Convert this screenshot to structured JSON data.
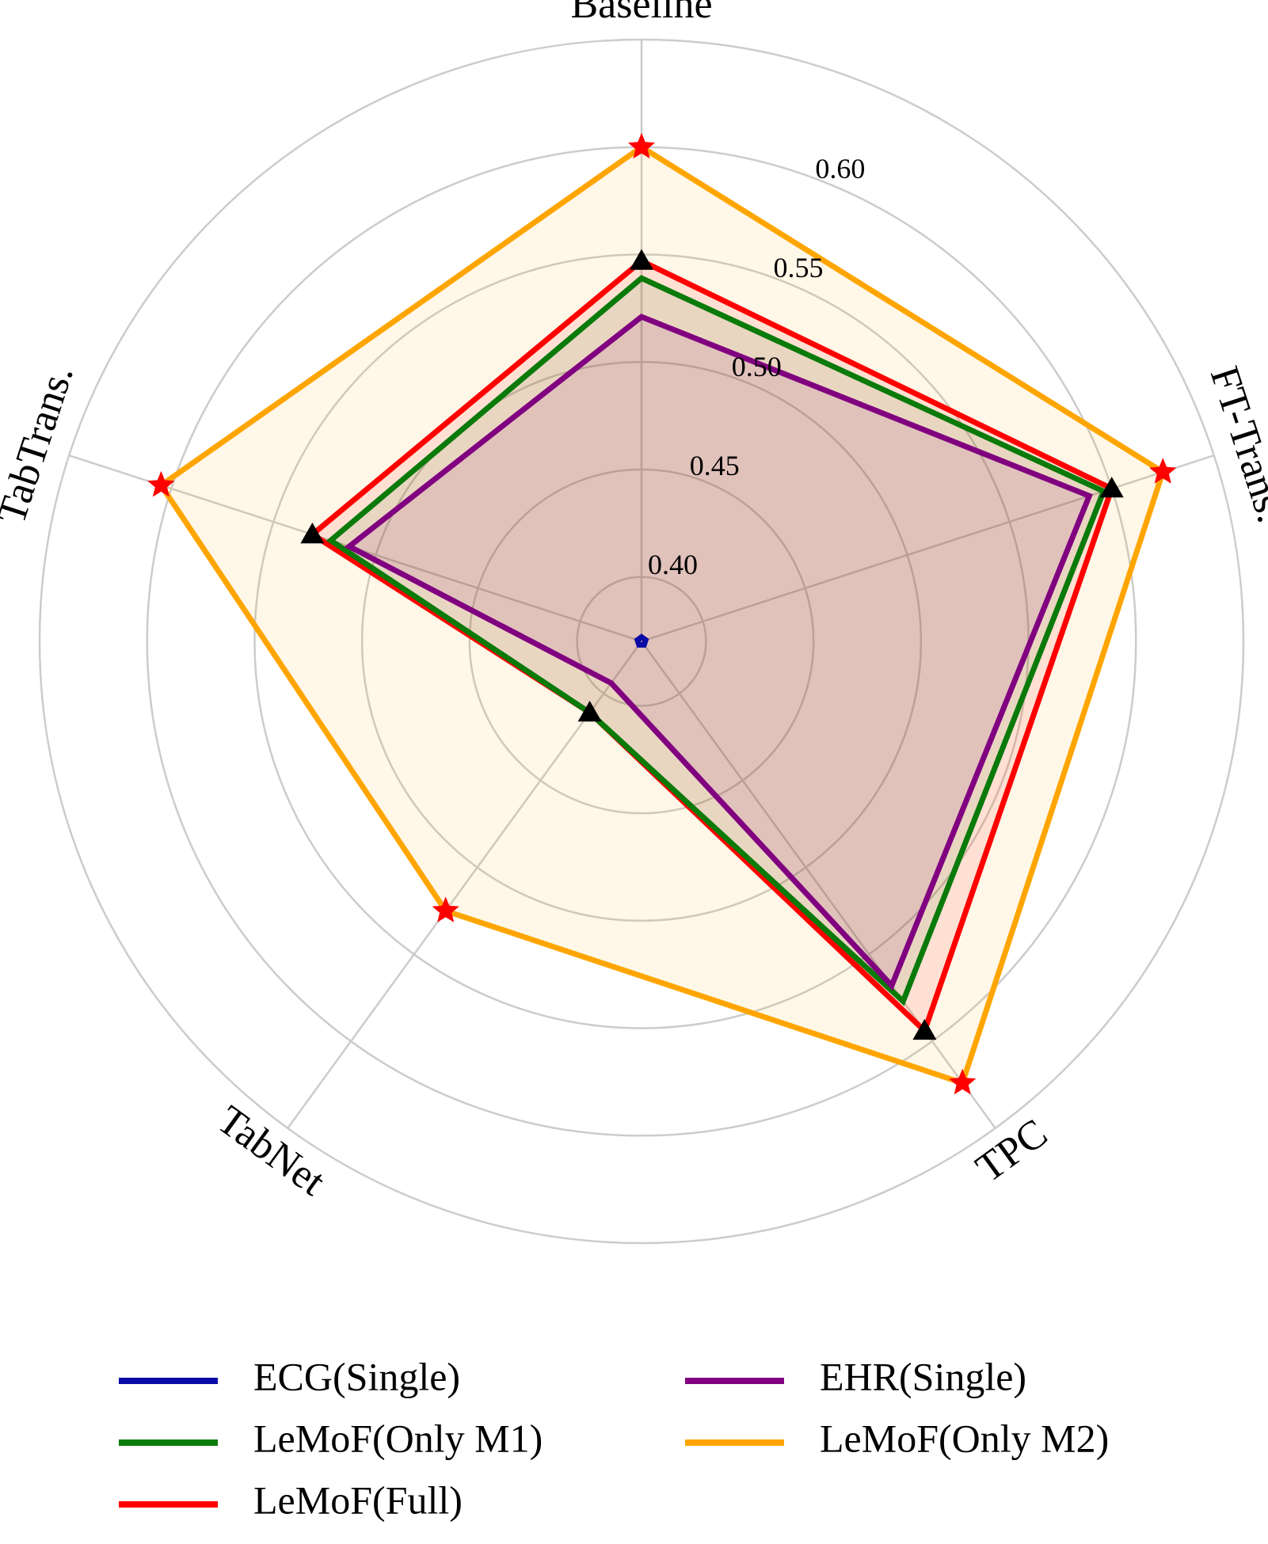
{
  "chart_data": {
    "type": "radar",
    "axes": [
      "Baseline",
      "FT-Trans.",
      "TPC",
      "TabNet",
      "TabTrans."
    ],
    "radial_ticks": [
      "0.40",
      "0.45",
      "0.50",
      "0.55",
      "0.60"
    ],
    "radial_tick_values": [
      0.4,
      0.45,
      0.5,
      0.55,
      0.6
    ],
    "rlim": [
      0.37,
      0.65
    ],
    "grid": true,
    "legend_position": "bottom",
    "series": [
      {
        "name": "ECG(Single)",
        "color": "#0a0aa6",
        "values": [
          0.372,
          0.372,
          0.372,
          0.372,
          0.372
        ],
        "fill": false,
        "marker": "none"
      },
      {
        "name": "EHR(Single)",
        "color": "#800080",
        "values": [
          0.521,
          0.589,
          0.568,
          0.394,
          0.513
        ],
        "fill": true,
        "marker": "none"
      },
      {
        "name": "LeMoF(Only M1)",
        "color": "#0a7a0a",
        "values": [
          0.539,
          0.596,
          0.577,
          0.411,
          0.522
        ],
        "fill": true,
        "marker": "none"
      },
      {
        "name": "LeMoF(Only M2)",
        "color": "#ffa500",
        "values": [
          0.6,
          0.625,
          0.624,
          0.525,
          0.605
        ],
        "fill": true,
        "marker": "star"
      },
      {
        "name": "LeMoF(Full)",
        "color": "#ff0000",
        "values": [
          0.547,
          0.6,
          0.594,
          0.411,
          0.531
        ],
        "fill": true,
        "marker": "triangle"
      }
    ],
    "legend_order": [
      "ECG(Single)",
      "EHR(Single)",
      "LeMoF(Only M1)",
      "LeMoF(Only M2)",
      "LeMoF(Full)"
    ]
  }
}
